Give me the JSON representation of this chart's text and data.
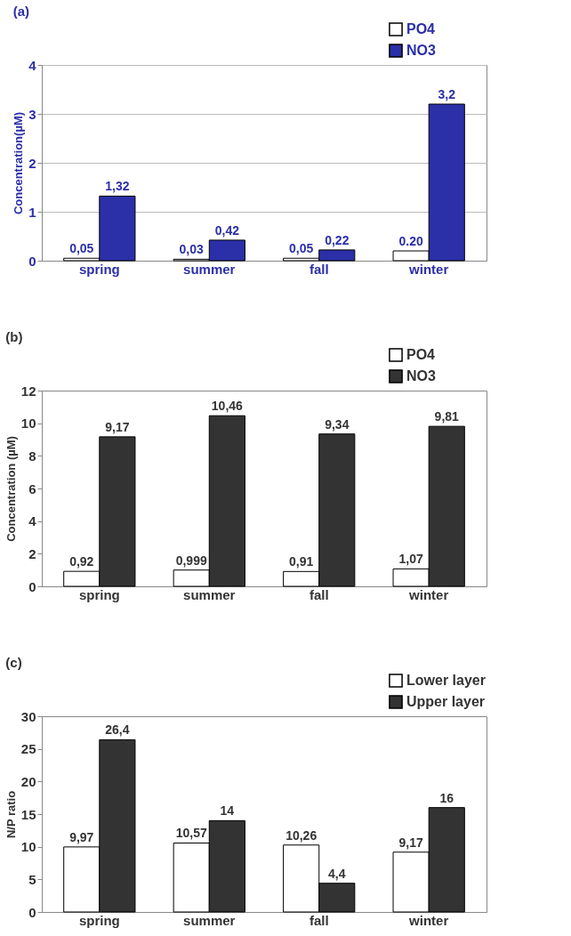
{
  "chart_data": [
    {
      "type": "bar",
      "title": "(a)",
      "ylabel": "Concentration(µM)",
      "categories": [
        "spring",
        "summer",
        "fall",
        "winter"
      ],
      "ylim": [
        0,
        4
      ],
      "yticks": [
        0,
        1,
        2,
        3,
        4
      ],
      "grid": "y",
      "legend": "top right",
      "series": [
        {
          "name": "PO4",
          "color": "#ffffff",
          "values": [
            0.05,
            0.03,
            0.05,
            0.2
          ],
          "value_labels": [
            "0,05",
            "0,03",
            "0,05",
            "0.20"
          ]
        },
        {
          "name": "NO3",
          "color": "#2b2fa8",
          "values": [
            1.32,
            0.42,
            0.22,
            3.2
          ],
          "value_labels": [
            "1,32",
            "0,42",
            "0,22",
            "3,2"
          ]
        }
      ]
    },
    {
      "type": "bar",
      "title": "(b)",
      "ylabel": "Concentration (µM)",
      "categories": [
        "spring",
        "summer",
        "fall",
        "winter"
      ],
      "ylim": [
        0,
        12
      ],
      "yticks": [
        0,
        2,
        4,
        6,
        8,
        10,
        12
      ],
      "legend": "top right",
      "series": [
        {
          "name": "PO4",
          "color": "#ffffff",
          "values": [
            0.92,
            0.999,
            0.91,
            1.07
          ],
          "value_labels": [
            "0,92",
            "0,999",
            "0,91",
            "1,07"
          ]
        },
        {
          "name": "NO3",
          "color": "#333333",
          "values": [
            9.17,
            10.46,
            9.34,
            9.81
          ],
          "value_labels": [
            "9,17",
            "10,46",
            "9,34",
            "9,81"
          ]
        }
      ]
    },
    {
      "type": "bar",
      "title": "(c)",
      "ylabel": "N/P ratio",
      "categories": [
        "spring",
        "summer",
        "fall",
        "winter"
      ],
      "ylim": [
        0,
        30
      ],
      "yticks": [
        0,
        5,
        10,
        15,
        20,
        25,
        30
      ],
      "legend": "top right",
      "series": [
        {
          "name": "Lower layer",
          "color": "#ffffff",
          "values": [
            9.97,
            10.57,
            10.26,
            9.17
          ],
          "value_labels": [
            "9,97",
            "10,57",
            "10,26",
            "9,17"
          ]
        },
        {
          "name": "Upper layer",
          "color": "#333333",
          "values": [
            26.4,
            14,
            4.4,
            16
          ],
          "value_labels": [
            "26,4",
            "14",
            "4,4",
            "16"
          ]
        }
      ]
    }
  ]
}
